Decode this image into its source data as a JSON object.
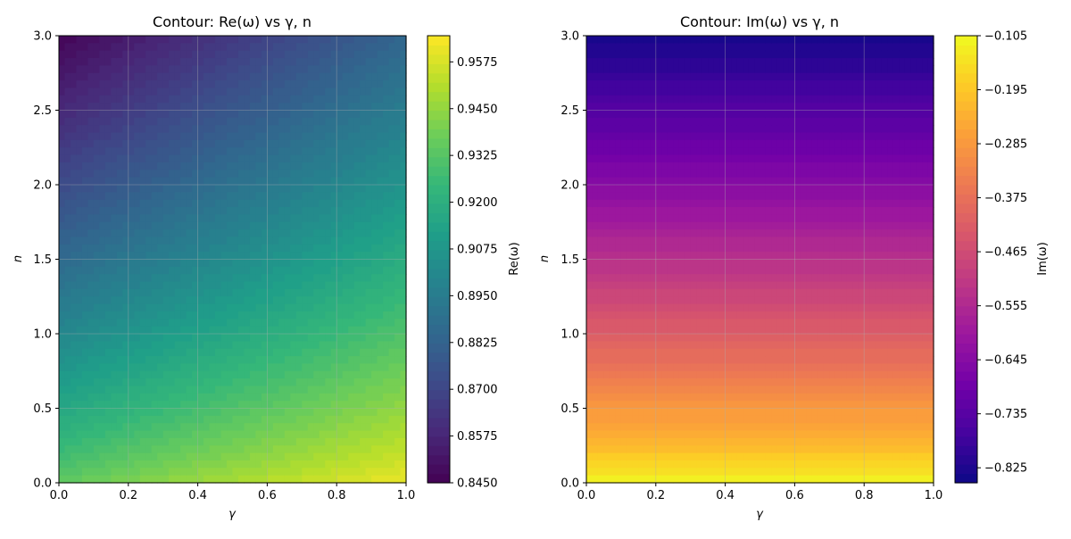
{
  "chart_data": [
    {
      "type": "heatmap",
      "title": "Contour: Re(ω) vs γ, n",
      "xlabel": "γ",
      "ylabel": "n",
      "xlim": [
        0.0,
        1.0
      ],
      "ylim": [
        0.0,
        3.0
      ],
      "xticks": [
        "0.0",
        "0.2",
        "0.4",
        "0.6",
        "0.8",
        "1.0"
      ],
      "yticks": [
        "0.0",
        "0.5",
        "1.0",
        "1.5",
        "2.0",
        "2.5",
        "3.0"
      ],
      "grid": true,
      "colormap": "viridis",
      "colorbar": {
        "label": "Re(ω)",
        "range": [
          0.845,
          0.9645
        ],
        "ticks": [
          "0.8450",
          "0.8575",
          "0.8700",
          "0.8825",
          "0.8950",
          "0.9075",
          "0.9200",
          "0.9325",
          "0.9450",
          "0.9575"
        ]
      },
      "corner_values": {
        "gamma_0_n_0": 0.935,
        "gamma_1_n_0": 0.962,
        "gamma_0_n_3": 0.846,
        "gamma_1_n_3": 0.884
      }
    },
    {
      "type": "heatmap",
      "title": "Contour: Im(ω) vs γ, n",
      "xlabel": "γ",
      "ylabel": "n",
      "xlim": [
        0.0,
        1.0
      ],
      "ylim": [
        0.0,
        3.0
      ],
      "xticks": [
        "0.0",
        "0.2",
        "0.4",
        "0.6",
        "0.8",
        "1.0"
      ],
      "yticks": [
        "0.0",
        "0.5",
        "1.0",
        "1.5",
        "2.0",
        "2.5",
        "3.0"
      ],
      "grid": true,
      "colormap": "plasma",
      "colorbar": {
        "label": "Im(ω)",
        "range": [
          -0.85,
          -0.105
        ],
        "ticks": [
          "−0.105",
          "−0.195",
          "−0.285",
          "−0.375",
          "−0.465",
          "−0.555",
          "−0.645",
          "−0.735",
          "−0.825"
        ]
      },
      "corner_values": {
        "n_0": -0.11,
        "n_3": -0.84
      }
    }
  ]
}
